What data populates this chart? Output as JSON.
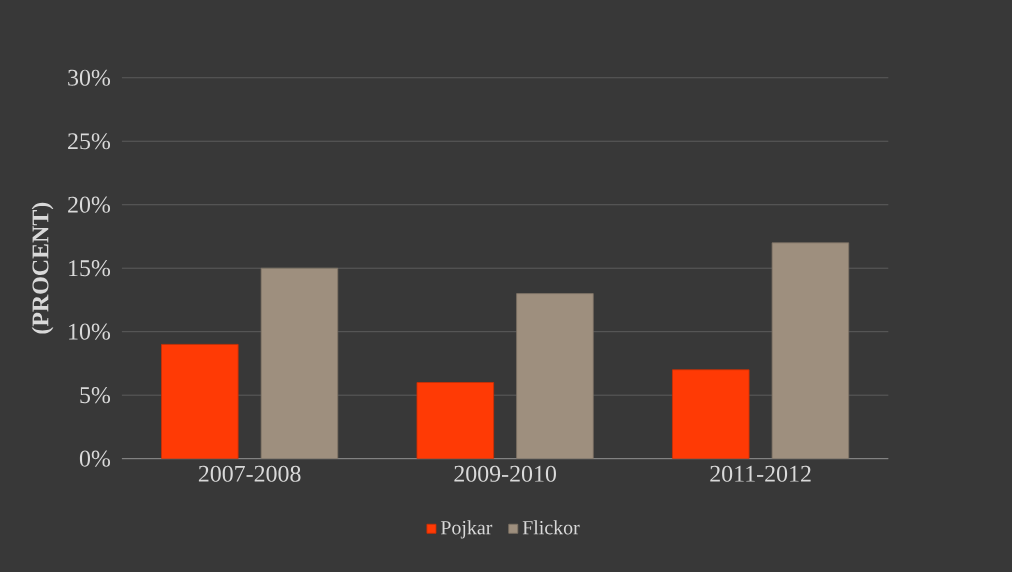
{
  "chart_data": {
    "type": "bar",
    "ylabel": "(PROCENT)",
    "categories": [
      "2007-2008",
      "2009-2010",
      "2011-2012"
    ],
    "series": [
      {
        "name": "Pojkar",
        "color": "#ff3a05",
        "values": [
          9,
          6,
          7
        ]
      },
      {
        "name": "Flickor",
        "color": "#9e8f7e",
        "values": [
          15,
          13,
          17
        ]
      }
    ],
    "ylim": [
      0,
      30
    ],
    "yticks": [
      {
        "value": 0,
        "label": "0%"
      },
      {
        "value": 5,
        "label": "5%"
      },
      {
        "value": 10,
        "label": "10%"
      },
      {
        "value": 15,
        "label": "15%"
      },
      {
        "value": 20,
        "label": "20%"
      },
      {
        "value": 25,
        "label": "25%"
      },
      {
        "value": 30,
        "label": "30%"
      }
    ],
    "grid": "y",
    "legend": "bottom"
  }
}
